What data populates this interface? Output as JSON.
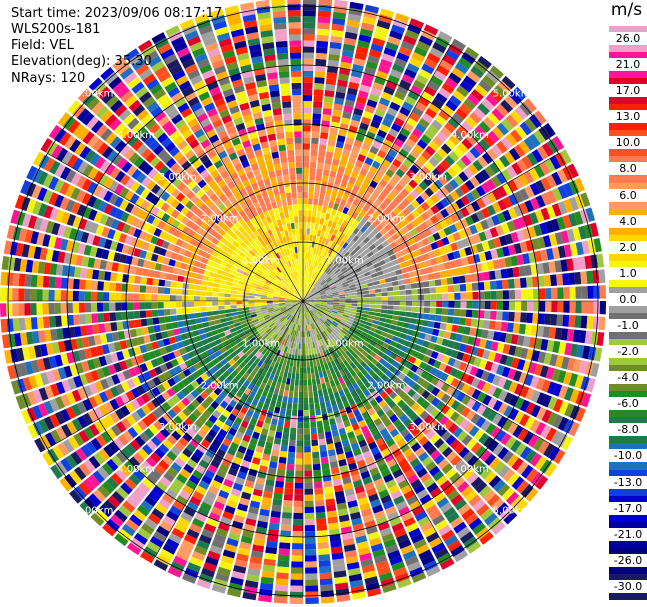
{
  "header": {
    "start_time": "Start time: 2023/09/06 08:17:17",
    "instrument": "WLS200s-181",
    "field": "Field: VEL",
    "elevation": "Elevation(deg): 35.30",
    "nrays": "NRays: 120"
  },
  "ring_labels": [
    "1.00km",
    "2.00km",
    "3.00km",
    "4.00km",
    "5.00km"
  ],
  "colorbar": {
    "unit": "m/s",
    "labels": [
      "26.0",
      "21.0",
      "17.0",
      "13.0",
      "10.0",
      "8.0",
      "6.0",
      "4.0",
      "2.0",
      "1.0",
      "0.0",
      "-1.0",
      "-2.0",
      "-4.0",
      "-6.0",
      "-8.0",
      "-10.0",
      "-13.0",
      "-17.0",
      "-21.0",
      "-26.0",
      "-30.0"
    ],
    "colors": [
      "#f0a0c8",
      "#ff1493",
      "#e0002a",
      "#ff2000",
      "#ff5020",
      "#ff7a50",
      "#ff9a60",
      "#ffb000",
      "#ffd700",
      "#f5f510",
      "#a0a0a0",
      "#707070",
      "#a0c83c",
      "#6e8c28",
      "#228b22",
      "#1e7a4a",
      "#2070c0",
      "#1040e0",
      "#0000d0",
      "#0000a0",
      "#000080",
      "#1a1a60"
    ]
  }
}
